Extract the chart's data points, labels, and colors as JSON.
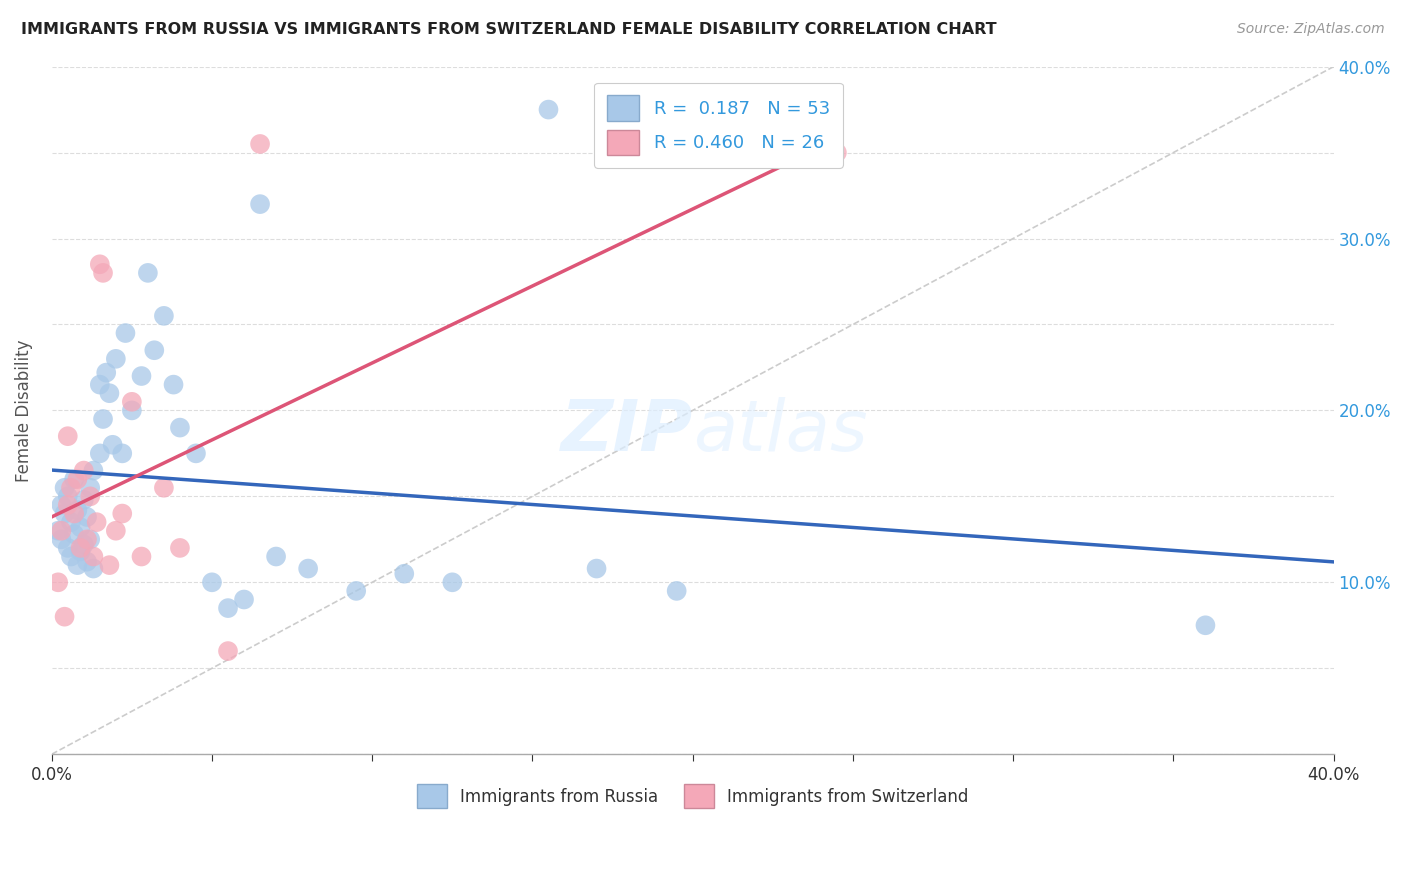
{
  "title": "IMMIGRANTS FROM RUSSIA VS IMMIGRANTS FROM SWITZERLAND FEMALE DISABILITY CORRELATION CHART",
  "source": "Source: ZipAtlas.com",
  "ylabel": "Female Disability",
  "xlim": [
    0.0,
    0.4
  ],
  "ylim": [
    0.0,
    0.4
  ],
  "russia_R": 0.187,
  "russia_N": 53,
  "swiss_R": 0.46,
  "swiss_N": 26,
  "russia_color": "#a8c8e8",
  "swiss_color": "#f4a8b8",
  "russia_line_color": "#3366bb",
  "swiss_line_color": "#dd5577",
  "diagonal_color": "#cccccc",
  "background_color": "#ffffff",
  "grid_color": "#dddddd",
  "russia_scatter_x": [
    0.002,
    0.003,
    0.003,
    0.004,
    0.004,
    0.005,
    0.005,
    0.006,
    0.006,
    0.007,
    0.007,
    0.008,
    0.008,
    0.009,
    0.009,
    0.01,
    0.01,
    0.011,
    0.011,
    0.012,
    0.012,
    0.013,
    0.013,
    0.015,
    0.015,
    0.016,
    0.017,
    0.018,
    0.019,
    0.02,
    0.022,
    0.023,
    0.025,
    0.028,
    0.03,
    0.032,
    0.035,
    0.038,
    0.04,
    0.045,
    0.05,
    0.055,
    0.06,
    0.065,
    0.07,
    0.08,
    0.095,
    0.11,
    0.125,
    0.155,
    0.17,
    0.195,
    0.36
  ],
  "russia_scatter_y": [
    0.13,
    0.145,
    0.125,
    0.155,
    0.14,
    0.15,
    0.12,
    0.135,
    0.115,
    0.16,
    0.128,
    0.142,
    0.11,
    0.132,
    0.118,
    0.148,
    0.122,
    0.138,
    0.112,
    0.155,
    0.125,
    0.165,
    0.108,
    0.175,
    0.215,
    0.195,
    0.222,
    0.21,
    0.18,
    0.23,
    0.175,
    0.245,
    0.2,
    0.22,
    0.28,
    0.235,
    0.255,
    0.215,
    0.19,
    0.175,
    0.1,
    0.085,
    0.09,
    0.32,
    0.115,
    0.108,
    0.095,
    0.105,
    0.1,
    0.375,
    0.108,
    0.095,
    0.075
  ],
  "swiss_scatter_x": [
    0.002,
    0.003,
    0.004,
    0.005,
    0.005,
    0.006,
    0.007,
    0.008,
    0.009,
    0.01,
    0.011,
    0.012,
    0.013,
    0.014,
    0.015,
    0.016,
    0.018,
    0.02,
    0.022,
    0.025,
    0.028,
    0.035,
    0.04,
    0.055,
    0.065,
    0.245
  ],
  "swiss_scatter_y": [
    0.1,
    0.13,
    0.08,
    0.185,
    0.145,
    0.155,
    0.14,
    0.16,
    0.12,
    0.165,
    0.125,
    0.15,
    0.115,
    0.135,
    0.285,
    0.28,
    0.11,
    0.13,
    0.14,
    0.205,
    0.115,
    0.155,
    0.12,
    0.06,
    0.355,
    0.35
  ]
}
